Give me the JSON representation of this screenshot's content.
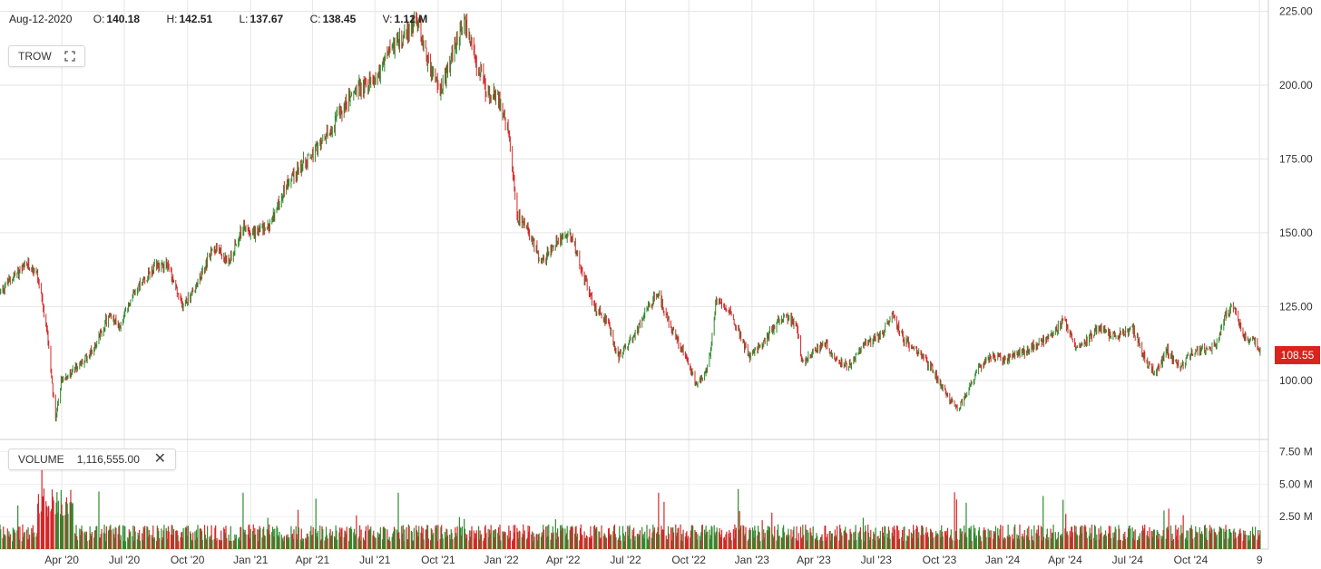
{
  "header": {
    "date": "Aug-12-2020",
    "open_label": "O:",
    "open": "140.18",
    "high_label": "H:",
    "high": "142.51",
    "low_label": "L:",
    "low": "137.67",
    "close_label": "C:",
    "close": "138.45",
    "volume_label": "V:",
    "volume": "1.12 M"
  },
  "ticker": {
    "symbol": "TROW",
    "icon": "expand-icon"
  },
  "volume_panel": {
    "label": "VOLUME",
    "value": "1,116,555.00",
    "close_icon": "close-icon"
  },
  "colors": {
    "up": "#2e8b2e",
    "down": "#d62728",
    "grid": "#e6e6e6",
    "last_price_bg": "#d9231d"
  },
  "chart_data": {
    "type": "candlestick",
    "last_price": "108.55",
    "price_axis": {
      "ticks": [
        "225.00",
        "200.00",
        "175.00",
        "150.00",
        "125.00",
        "100.00"
      ],
      "ylim": [
        80,
        227
      ]
    },
    "volume_axis": {
      "ticks": [
        "7.50 M",
        "5.00 M",
        "2.50 M"
      ],
      "ylim": [
        0,
        8.3
      ]
    },
    "x_ticks": [
      "Apr '20",
      "Jul '20",
      "Oct '20",
      "Jan '21",
      "Apr '21",
      "Jul '21",
      "Oct '21",
      "Jan '22",
      "Apr '22",
      "Jul '22",
      "Oct '22",
      "Jan '23",
      "Apr '23",
      "Jul '23",
      "Oct '23",
      "Jan '24",
      "Apr '24",
      "Jul '24",
      "Oct '24",
      "9"
    ],
    "price_path": [
      [
        "2020-01-02",
        130
      ],
      [
        "2020-01-20",
        135
      ],
      [
        "2020-02-12",
        139
      ],
      [
        "2020-02-24",
        137
      ],
      [
        "2020-03-02",
        128
      ],
      [
        "2020-03-10",
        118
      ],
      [
        "2020-03-23",
        86
      ],
      [
        "2020-03-31",
        100
      ],
      [
        "2020-04-15",
        103
      ],
      [
        "2020-05-01",
        106
      ],
      [
        "2020-05-20",
        112
      ],
      [
        "2020-06-08",
        122
      ],
      [
        "2020-06-25",
        118
      ],
      [
        "2020-07-15",
        130
      ],
      [
        "2020-08-12",
        138
      ],
      [
        "2020-09-01",
        140
      ],
      [
        "2020-09-23",
        125
      ],
      [
        "2020-10-15",
        132
      ],
      [
        "2020-11-09",
        146
      ],
      [
        "2020-11-30",
        140
      ],
      [
        "2020-12-20",
        152
      ],
      [
        "2021-01-05",
        150
      ],
      [
        "2021-01-28",
        152
      ],
      [
        "2021-02-25",
        168
      ],
      [
        "2021-03-25",
        175
      ],
      [
        "2021-04-15",
        180
      ],
      [
        "2021-05-10",
        190
      ],
      [
        "2021-06-01",
        198
      ],
      [
        "2021-07-01",
        202
      ],
      [
        "2021-07-25",
        213
      ],
      [
        "2021-08-10",
        216
      ],
      [
        "2021-08-31",
        222
      ],
      [
        "2021-09-20",
        205
      ],
      [
        "2021-10-05",
        198
      ],
      [
        "2021-10-22",
        210
      ],
      [
        "2021-11-08",
        222
      ],
      [
        "2021-11-25",
        208
      ],
      [
        "2021-12-10",
        198
      ],
      [
        "2021-12-30",
        195
      ],
      [
        "2022-01-10",
        185
      ],
      [
        "2022-01-25",
        155
      ],
      [
        "2022-02-10",
        150
      ],
      [
        "2022-03-01",
        140
      ],
      [
        "2022-03-25",
        148
      ],
      [
        "2022-04-12",
        150
      ],
      [
        "2022-04-28",
        138
      ],
      [
        "2022-05-15",
        125
      ],
      [
        "2022-06-05",
        120
      ],
      [
        "2022-06-20",
        108
      ],
      [
        "2022-07-05",
        112
      ],
      [
        "2022-07-25",
        120
      ],
      [
        "2022-08-16",
        130
      ],
      [
        "2022-09-05",
        118
      ],
      [
        "2022-09-30",
        106
      ],
      [
        "2022-10-12",
        98
      ],
      [
        "2022-10-30",
        105
      ],
      [
        "2022-11-10",
        128
      ],
      [
        "2022-11-25",
        125
      ],
      [
        "2022-12-10",
        118
      ],
      [
        "2022-12-28",
        108
      ],
      [
        "2023-01-20",
        113
      ],
      [
        "2023-02-06",
        120
      ],
      [
        "2023-02-20",
        122
      ],
      [
        "2023-03-08",
        118
      ],
      [
        "2023-03-15",
        106
      ],
      [
        "2023-03-31",
        110
      ],
      [
        "2023-04-20",
        112
      ],
      [
        "2023-05-05",
        106
      ],
      [
        "2023-05-25",
        105
      ],
      [
        "2023-06-15",
        113
      ],
      [
        "2023-07-05",
        115
      ],
      [
        "2023-07-25",
        122
      ],
      [
        "2023-08-10",
        114
      ],
      [
        "2023-08-30",
        110
      ],
      [
        "2023-09-20",
        104
      ],
      [
        "2023-10-05",
        98
      ],
      [
        "2023-10-27",
        90
      ],
      [
        "2023-11-08",
        95
      ],
      [
        "2023-11-30",
        105
      ],
      [
        "2023-12-15",
        108
      ],
      [
        "2024-01-05",
        107
      ],
      [
        "2024-02-05",
        110
      ],
      [
        "2024-02-25",
        113
      ],
      [
        "2024-03-15",
        116
      ],
      [
        "2024-03-30",
        121
      ],
      [
        "2024-04-16",
        112
      ],
      [
        "2024-05-01",
        113
      ],
      [
        "2024-05-20",
        118
      ],
      [
        "2024-06-05",
        115
      ],
      [
        "2024-06-25",
        116
      ],
      [
        "2024-07-10",
        117
      ],
      [
        "2024-07-30",
        105
      ],
      [
        "2024-08-12",
        103
      ],
      [
        "2024-08-28",
        110
      ],
      [
        "2024-09-15",
        104
      ],
      [
        "2024-10-05",
        110
      ],
      [
        "2024-10-25",
        110
      ],
      [
        "2024-11-08",
        112
      ],
      [
        "2024-11-20",
        122
      ],
      [
        "2024-12-02",
        125
      ],
      [
        "2024-12-18",
        115
      ],
      [
        "2025-01-03",
        113
      ],
      [
        "2025-01-12",
        108.55
      ]
    ]
  }
}
